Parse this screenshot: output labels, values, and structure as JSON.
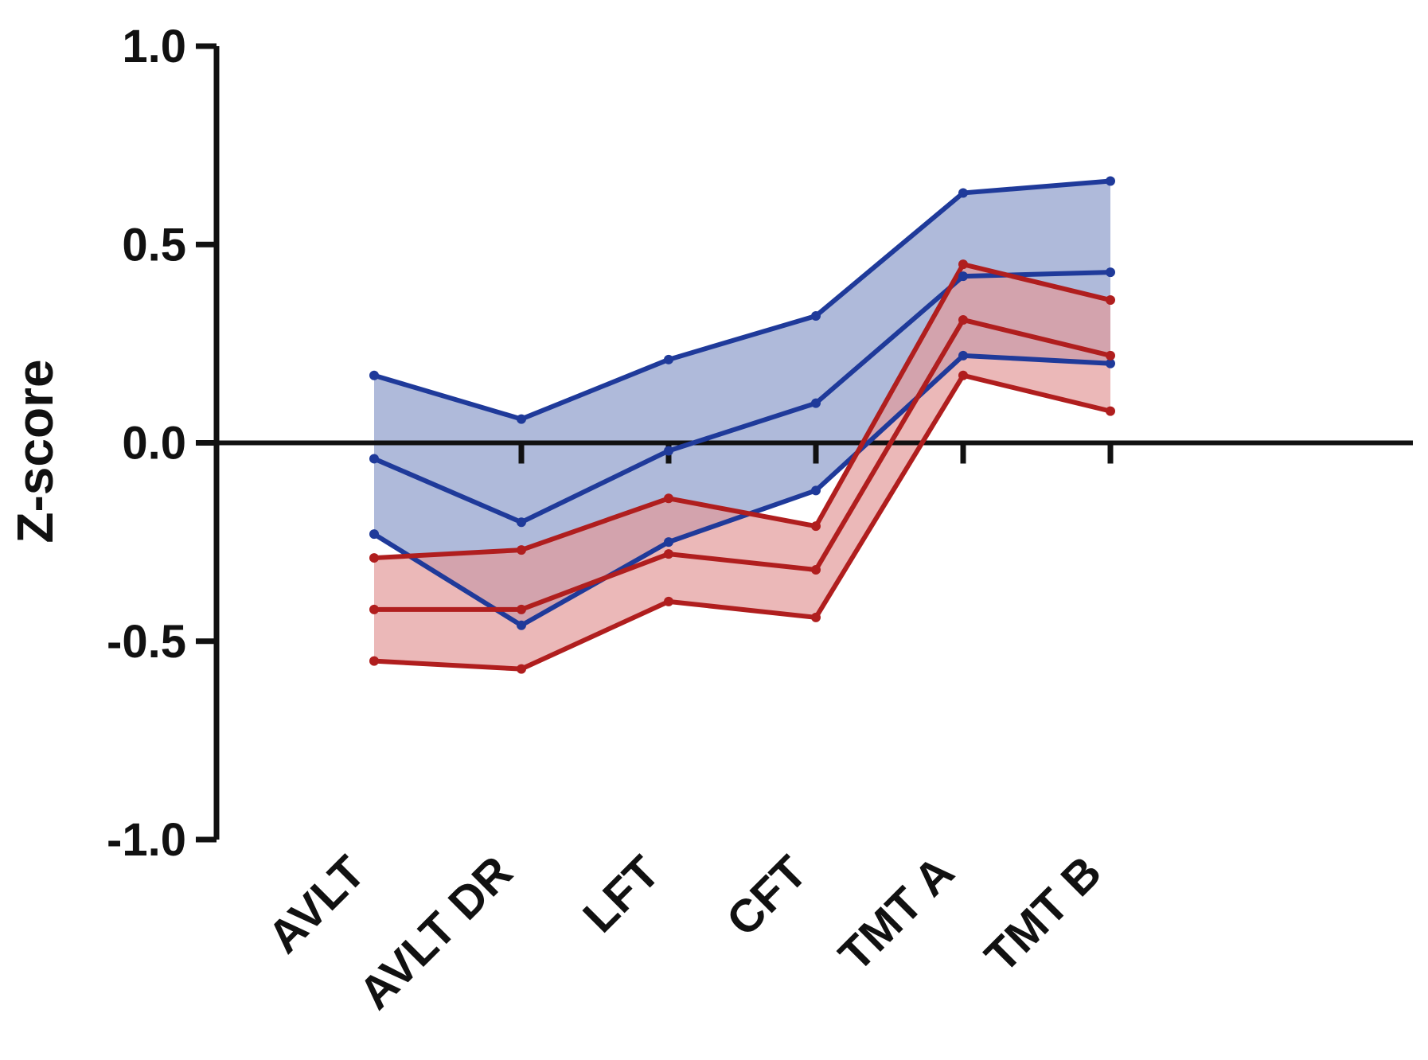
{
  "chart_data": {
    "type": "line",
    "title": "",
    "xlabel": "",
    "ylabel": "Z-score",
    "ylim": [
      -1.0,
      1.0
    ],
    "yticks": [
      "1.0",
      "0.5",
      "0.0",
      "-0.5",
      "-1.0"
    ],
    "ytick_values": [
      1.0,
      0.5,
      0.0,
      -0.5,
      -1.0
    ],
    "categories": [
      "AVLT",
      "AVLT DR",
      "LFT",
      "CFT",
      "TMT A",
      "TMT B"
    ],
    "grid": false,
    "legend": "none",
    "series": [
      {
        "color": "#1f3a9a",
        "band_color": "#8d9ccb",
        "mean": [
          -0.04,
          -0.2,
          -0.02,
          0.1,
          0.42,
          0.43
        ],
        "upper": [
          0.17,
          0.06,
          0.21,
          0.32,
          0.63,
          0.66
        ],
        "lower": [
          -0.23,
          -0.46,
          -0.25,
          -0.12,
          0.22,
          0.2
        ]
      },
      {
        "color": "#b01e1e",
        "band_color": "#e39a9a",
        "mean": [
          -0.42,
          -0.42,
          -0.28,
          -0.32,
          0.31,
          0.22
        ],
        "upper": [
          -0.29,
          -0.27,
          -0.14,
          -0.21,
          0.45,
          0.36
        ],
        "lower": [
          -0.55,
          -0.57,
          -0.4,
          -0.44,
          0.17,
          0.08
        ]
      }
    ]
  }
}
